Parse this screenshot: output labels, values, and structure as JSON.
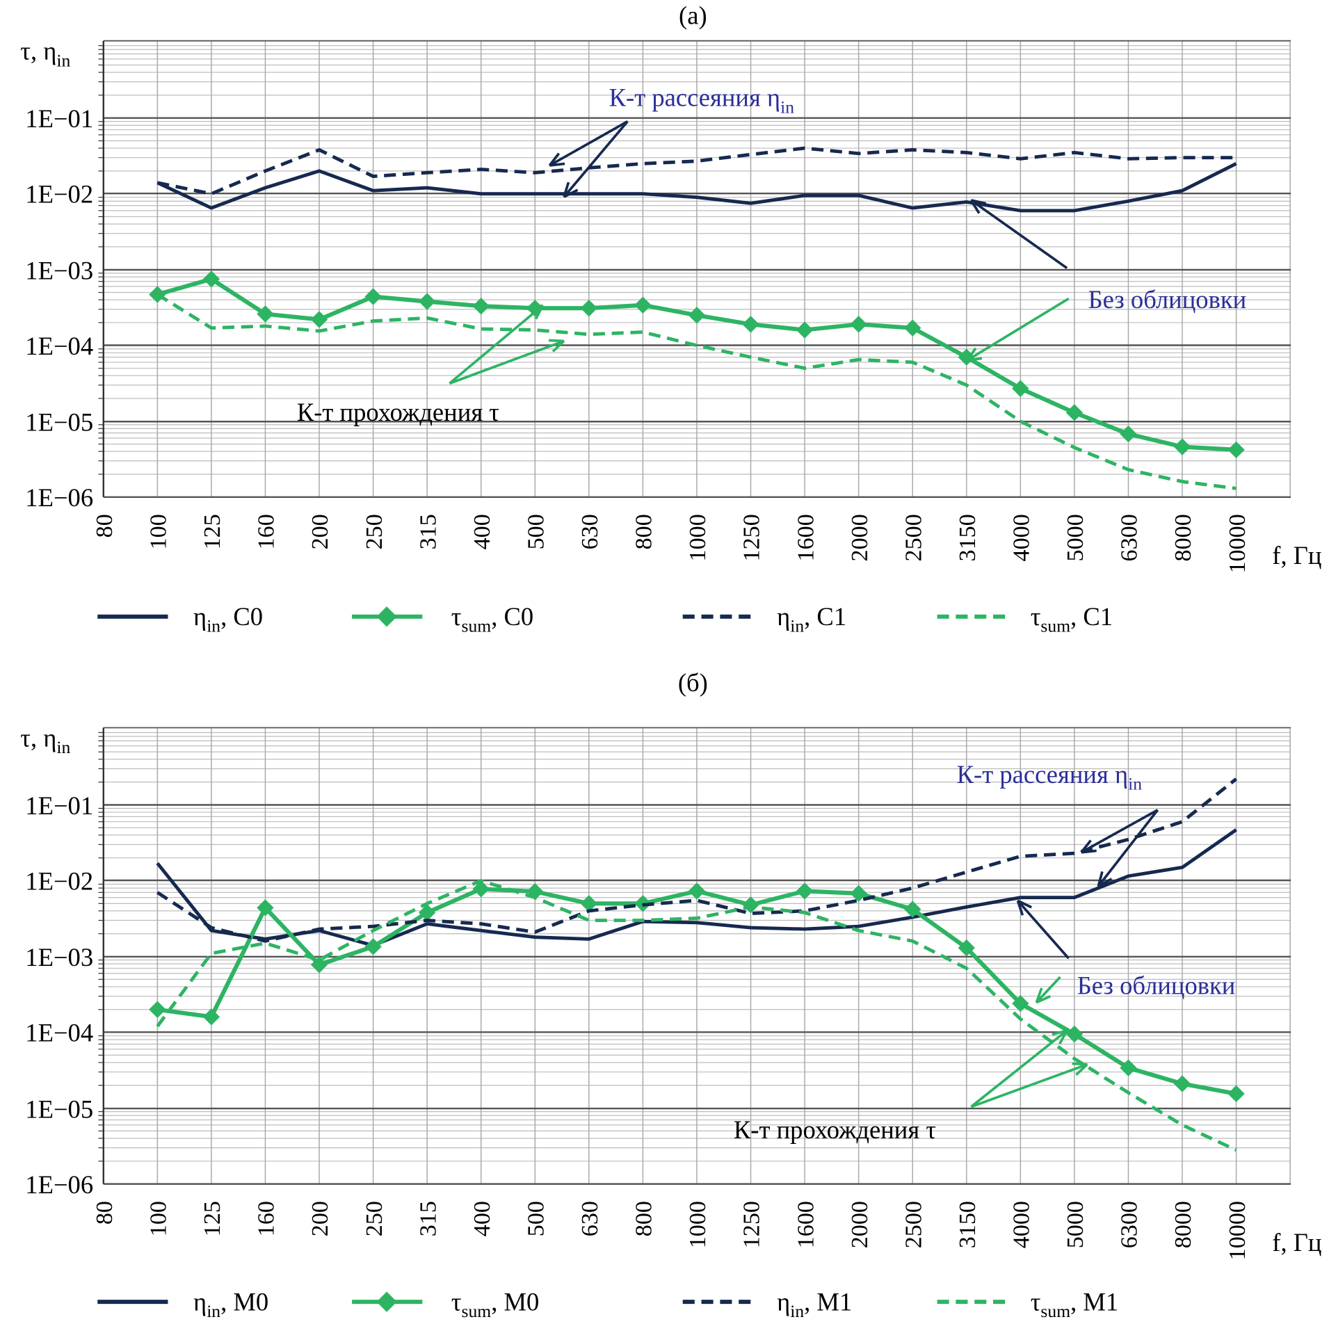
{
  "colors": {
    "eta": "#16294f",
    "tau": "#2db463",
    "annot_text": "#2b2f98",
    "grid_major": "#555555",
    "grid_minor": "#bdbdbd"
  },
  "chart_data": [
    {
      "type": "line",
      "title": "(а)",
      "ylabel": "τ, η",
      "ylabel_sub": "in",
      "xlabel": "f, Гц",
      "yscale": "log",
      "ylim": [
        1e-06,
        1
      ],
      "ytick_labels": [
        "1E−01",
        "1E−02",
        "1E−03",
        "1E−04",
        "1E−05",
        "1E−06"
      ],
      "categories": [
        "80",
        "100",
        "125",
        "160",
        "200",
        "250",
        "315",
        "400",
        "500",
        "630",
        "800",
        "1000",
        "1250",
        "1600",
        "2000",
        "2500",
        "3150",
        "4000",
        "5000",
        "6300",
        "8000",
        "10000"
      ],
      "grid": true,
      "legend": "bottom",
      "series": [
        {
          "name": "η",
          "sub": "in",
          "suffix": ", C0",
          "style": "solid",
          "color": "eta",
          "x": [
            "100",
            "125",
            "160",
            "200",
            "250",
            "315",
            "400",
            "500",
            "630",
            "800",
            "1000",
            "1250",
            "1600",
            "2000",
            "2500",
            "3150",
            "4000",
            "5000",
            "6300",
            "8000",
            "10000"
          ],
          "values": [
            0.014,
            0.0065,
            0.012,
            0.02,
            0.011,
            0.012,
            0.01,
            0.01,
            0.01,
            0.01,
            0.009,
            0.0075,
            0.0095,
            0.0095,
            0.0065,
            0.0078,
            0.006,
            0.006,
            0.008,
            0.011,
            0.025
          ]
        },
        {
          "name": "τ",
          "sub": "sum",
          "suffix": ", C0",
          "style": "solid-diamond",
          "color": "tau",
          "x": [
            "100",
            "125",
            "160",
            "200",
            "250",
            "315",
            "400",
            "500",
            "630",
            "800",
            "1000",
            "1250",
            "1600",
            "2000",
            "2500",
            "3150",
            "4000",
            "5000",
            "6300",
            "8000",
            "10000"
          ],
          "values": [
            0.00047,
            0.00075,
            0.00026,
            0.00022,
            0.00044,
            0.00038,
            0.00033,
            0.00031,
            0.00031,
            0.00034,
            0.00025,
            0.00019,
            0.00016,
            0.00019,
            0.00017,
            7e-05,
            2.7e-05,
            1.3e-05,
            6.8e-06,
            4.6e-06,
            4.2e-06
          ]
        },
        {
          "name": "η",
          "sub": "in",
          "suffix": ", C1",
          "style": "dashed",
          "color": "eta",
          "x": [
            "100",
            "125",
            "160",
            "200",
            "250",
            "315",
            "400",
            "500",
            "630",
            "800",
            "1000",
            "1250",
            "1600",
            "2000",
            "2500",
            "3150",
            "4000",
            "5000",
            "6300",
            "8000",
            "10000"
          ],
          "values": [
            0.014,
            0.01,
            0.02,
            0.038,
            0.017,
            0.019,
            0.021,
            0.019,
            0.022,
            0.025,
            0.027,
            0.033,
            0.04,
            0.034,
            0.038,
            0.035,
            0.029,
            0.035,
            0.029,
            0.03,
            0.03
          ]
        },
        {
          "name": "τ",
          "sub": "sum",
          "suffix": ", C1",
          "style": "dashed",
          "color": "tau",
          "x": [
            "100",
            "125",
            "160",
            "200",
            "250",
            "315",
            "400",
            "500",
            "630",
            "800",
            "1000",
            "1250",
            "1600",
            "2000",
            "2500",
            "3150",
            "4000",
            "5000",
            "6300",
            "8000",
            "10000"
          ],
          "values": [
            0.00047,
            0.00017,
            0.00018,
            0.000155,
            0.00021,
            0.00023,
            0.000165,
            0.00016,
            0.00014,
            0.00015,
            0.0001,
            7e-05,
            5e-05,
            6.5e-05,
            6e-05,
            3e-05,
            1e-05,
            4.5e-06,
            2.3e-06,
            1.6e-06,
            1.3e-06
          ]
        }
      ],
      "annotations": [
        {
          "text": "К-т рассеяния η",
          "sub": "in",
          "color": "annot_text"
        },
        {
          "text": "Без облицовки",
          "sub": "",
          "color": "annot_text"
        },
        {
          "text": "К-т прохождения τ",
          "sub": "",
          "color": "black"
        }
      ]
    },
    {
      "type": "line",
      "title": "(б)",
      "ylabel": "τ, η",
      "ylabel_sub": "in",
      "xlabel": "f, Гц",
      "yscale": "log",
      "ylim": [
        1e-06,
        1
      ],
      "ytick_labels": [
        "1E−01",
        "1E−02",
        "1E−03",
        "1E−04",
        "1E−05",
        "1E−06"
      ],
      "categories": [
        "80",
        "100",
        "125",
        "160",
        "200",
        "250",
        "315",
        "400",
        "500",
        "630",
        "800",
        "1000",
        "1250",
        "1600",
        "2000",
        "2500",
        "3150",
        "4000",
        "5000",
        "6300",
        "8000",
        "10000"
      ],
      "grid": true,
      "legend": "bottom",
      "series": [
        {
          "name": "η",
          "sub": "in",
          "suffix": ", M0",
          "style": "solid",
          "color": "eta",
          "x": [
            "100",
            "125",
            "160",
            "200",
            "250",
            "315",
            "400",
            "500",
            "630",
            "800",
            "1000",
            "1250",
            "1600",
            "2000",
            "2500",
            "3150",
            "4000",
            "5000",
            "6300",
            "8000",
            "10000"
          ],
          "values": [
            0.017,
            0.0022,
            0.0017,
            0.0022,
            0.0014,
            0.0027,
            0.0022,
            0.0018,
            0.0017,
            0.0029,
            0.0028,
            0.0024,
            0.0023,
            0.0025,
            0.0033,
            0.0045,
            0.006,
            0.006,
            0.0115,
            0.015,
            0.047
          ]
        },
        {
          "name": "τ",
          "sub": "sum",
          "suffix": ", M0",
          "style": "solid-diamond",
          "color": "tau",
          "x": [
            "100",
            "125",
            "160",
            "200",
            "250",
            "315",
            "400",
            "500",
            "630",
            "800",
            "1000",
            "1250",
            "1600",
            "2000",
            "2500",
            "3150",
            "4000",
            "5000",
            "6300",
            "8000",
            "10000"
          ],
          "values": [
            0.0002,
            0.00016,
            0.0044,
            0.00078,
            0.00135,
            0.0038,
            0.0078,
            0.0072,
            0.005,
            0.005,
            0.0073,
            0.0048,
            0.0073,
            0.0068,
            0.0042,
            0.0013,
            0.00024,
            9.5e-05,
            3.4e-05,
            2.1e-05,
            1.55e-05
          ]
        },
        {
          "name": "η",
          "sub": "in",
          "suffix": ", M1",
          "style": "dashed",
          "color": "eta",
          "x": [
            "100",
            "125",
            "160",
            "200",
            "250",
            "315",
            "400",
            "500",
            "630",
            "800",
            "1000",
            "1250",
            "1600",
            "2000",
            "2500",
            "3150",
            "4000",
            "5000",
            "6300",
            "8000",
            "10000"
          ],
          "values": [
            0.007,
            0.0024,
            0.0016,
            0.0023,
            0.0025,
            0.003,
            0.0027,
            0.0021,
            0.004,
            0.0048,
            0.0055,
            0.0037,
            0.004,
            0.0055,
            0.008,
            0.013,
            0.021,
            0.023,
            0.035,
            0.06,
            0.22
          ]
        },
        {
          "name": "τ",
          "sub": "sum",
          "suffix": ", M1",
          "style": "dashed",
          "color": "tau",
          "x": [
            "100",
            "125",
            "160",
            "200",
            "250",
            "315",
            "400",
            "500",
            "630",
            "800",
            "1000",
            "1250",
            "1600",
            "2000",
            "2500",
            "3150",
            "4000",
            "5000",
            "6300",
            "8000",
            "10000"
          ],
          "values": [
            0.00012,
            0.0011,
            0.0015,
            0.0009,
            0.0022,
            0.005,
            0.01,
            0.006,
            0.003,
            0.003,
            0.0032,
            0.0045,
            0.0038,
            0.0022,
            0.0016,
            0.0007,
            0.00015,
            4.5e-05,
            1.6e-05,
            6e-06,
            2.8e-06
          ]
        }
      ],
      "annotations": [
        {
          "text": "К-т рассеяния η",
          "sub": "in",
          "color": "annot_text"
        },
        {
          "text": "Без облицовки",
          "sub": "",
          "color": "annot_text"
        },
        {
          "text": "К-т прохождения τ",
          "sub": "",
          "color": "black"
        }
      ]
    }
  ]
}
